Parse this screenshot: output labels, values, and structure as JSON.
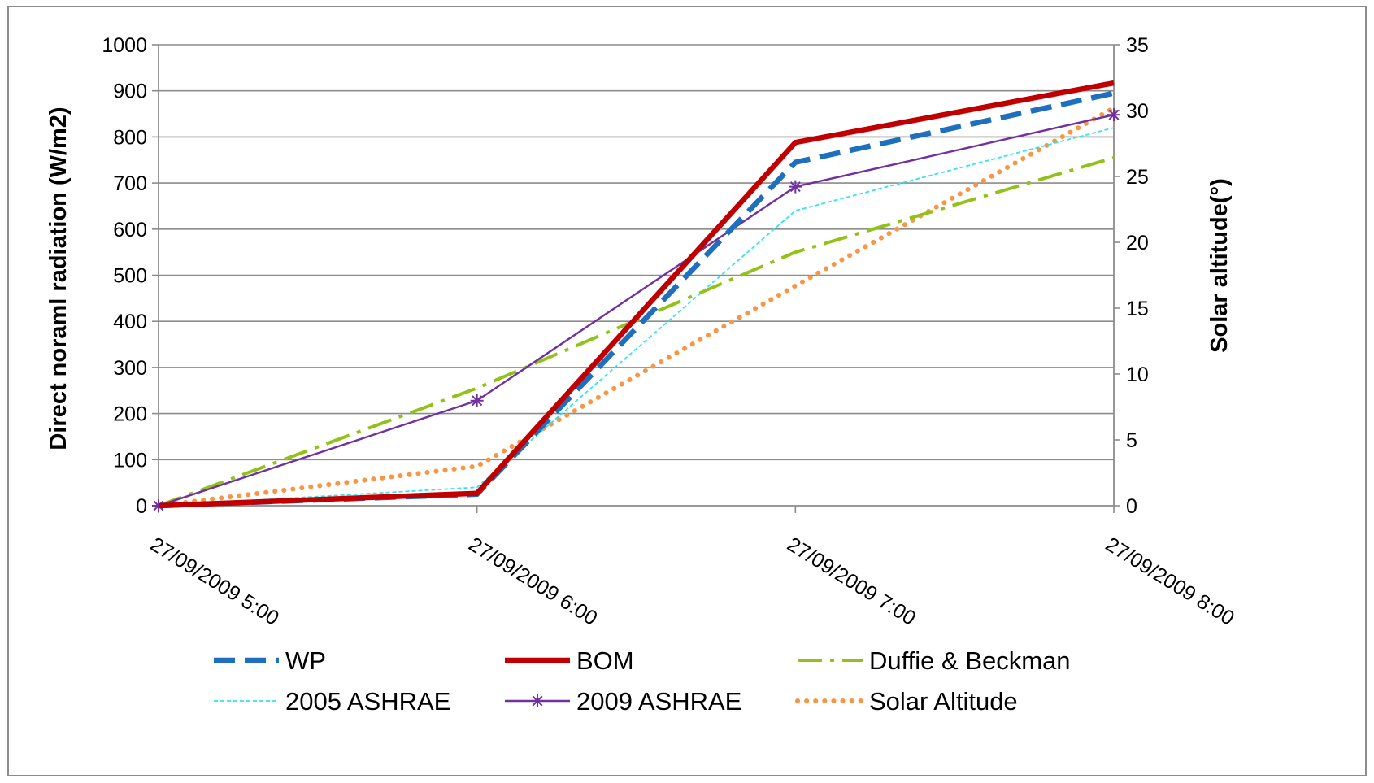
{
  "chart_data": {
    "type": "line",
    "title": "",
    "x": [
      "27/09/2009 5:00",
      "27/09/2009 6:00",
      "27/09/2009 7:00",
      "27/09/2009 8:00"
    ],
    "ylabel": "Direct  noraml radiation (W/m2)",
    "ylim": [
      0,
      1000
    ],
    "yticks": [
      0,
      100,
      200,
      300,
      400,
      500,
      600,
      700,
      800,
      900,
      1000
    ],
    "y2label": "Solar altitude(°)",
    "y2lim": [
      0,
      35
    ],
    "y2ticks": [
      0,
      5,
      10,
      15,
      20,
      25,
      30,
      35
    ],
    "grid": true,
    "legend_position": "bottom",
    "series": [
      {
        "name": "WP",
        "axis": "left",
        "values": [
          0,
          25,
          745,
          895
        ],
        "color": "#1f6fbf",
        "style": "long-dash"
      },
      {
        "name": "BOM",
        "axis": "left",
        "values": [
          0,
          27,
          788,
          917
        ],
        "color": "#c00000",
        "style": "solid-thick"
      },
      {
        "name": "Duffie & Beckman",
        "axis": "left",
        "values": [
          0,
          255,
          550,
          755
        ],
        "color": "#92c21a",
        "style": "dash-dot"
      },
      {
        "name": "2005 ASHRAE",
        "axis": "left",
        "values": [
          0,
          40,
          640,
          820
        ],
        "color": "#33e3ee",
        "style": "short-dash"
      },
      {
        "name": "2009 ASHRAE",
        "axis": "left",
        "values": [
          0,
          228,
          692,
          848
        ],
        "color": "#7030a0",
        "style": "solid-star"
      },
      {
        "name": "Solar Altitude",
        "axis": "right",
        "values": [
          0,
          3,
          16.7,
          30.2
        ],
        "color": "#f79646",
        "style": "round-dot"
      }
    ]
  }
}
